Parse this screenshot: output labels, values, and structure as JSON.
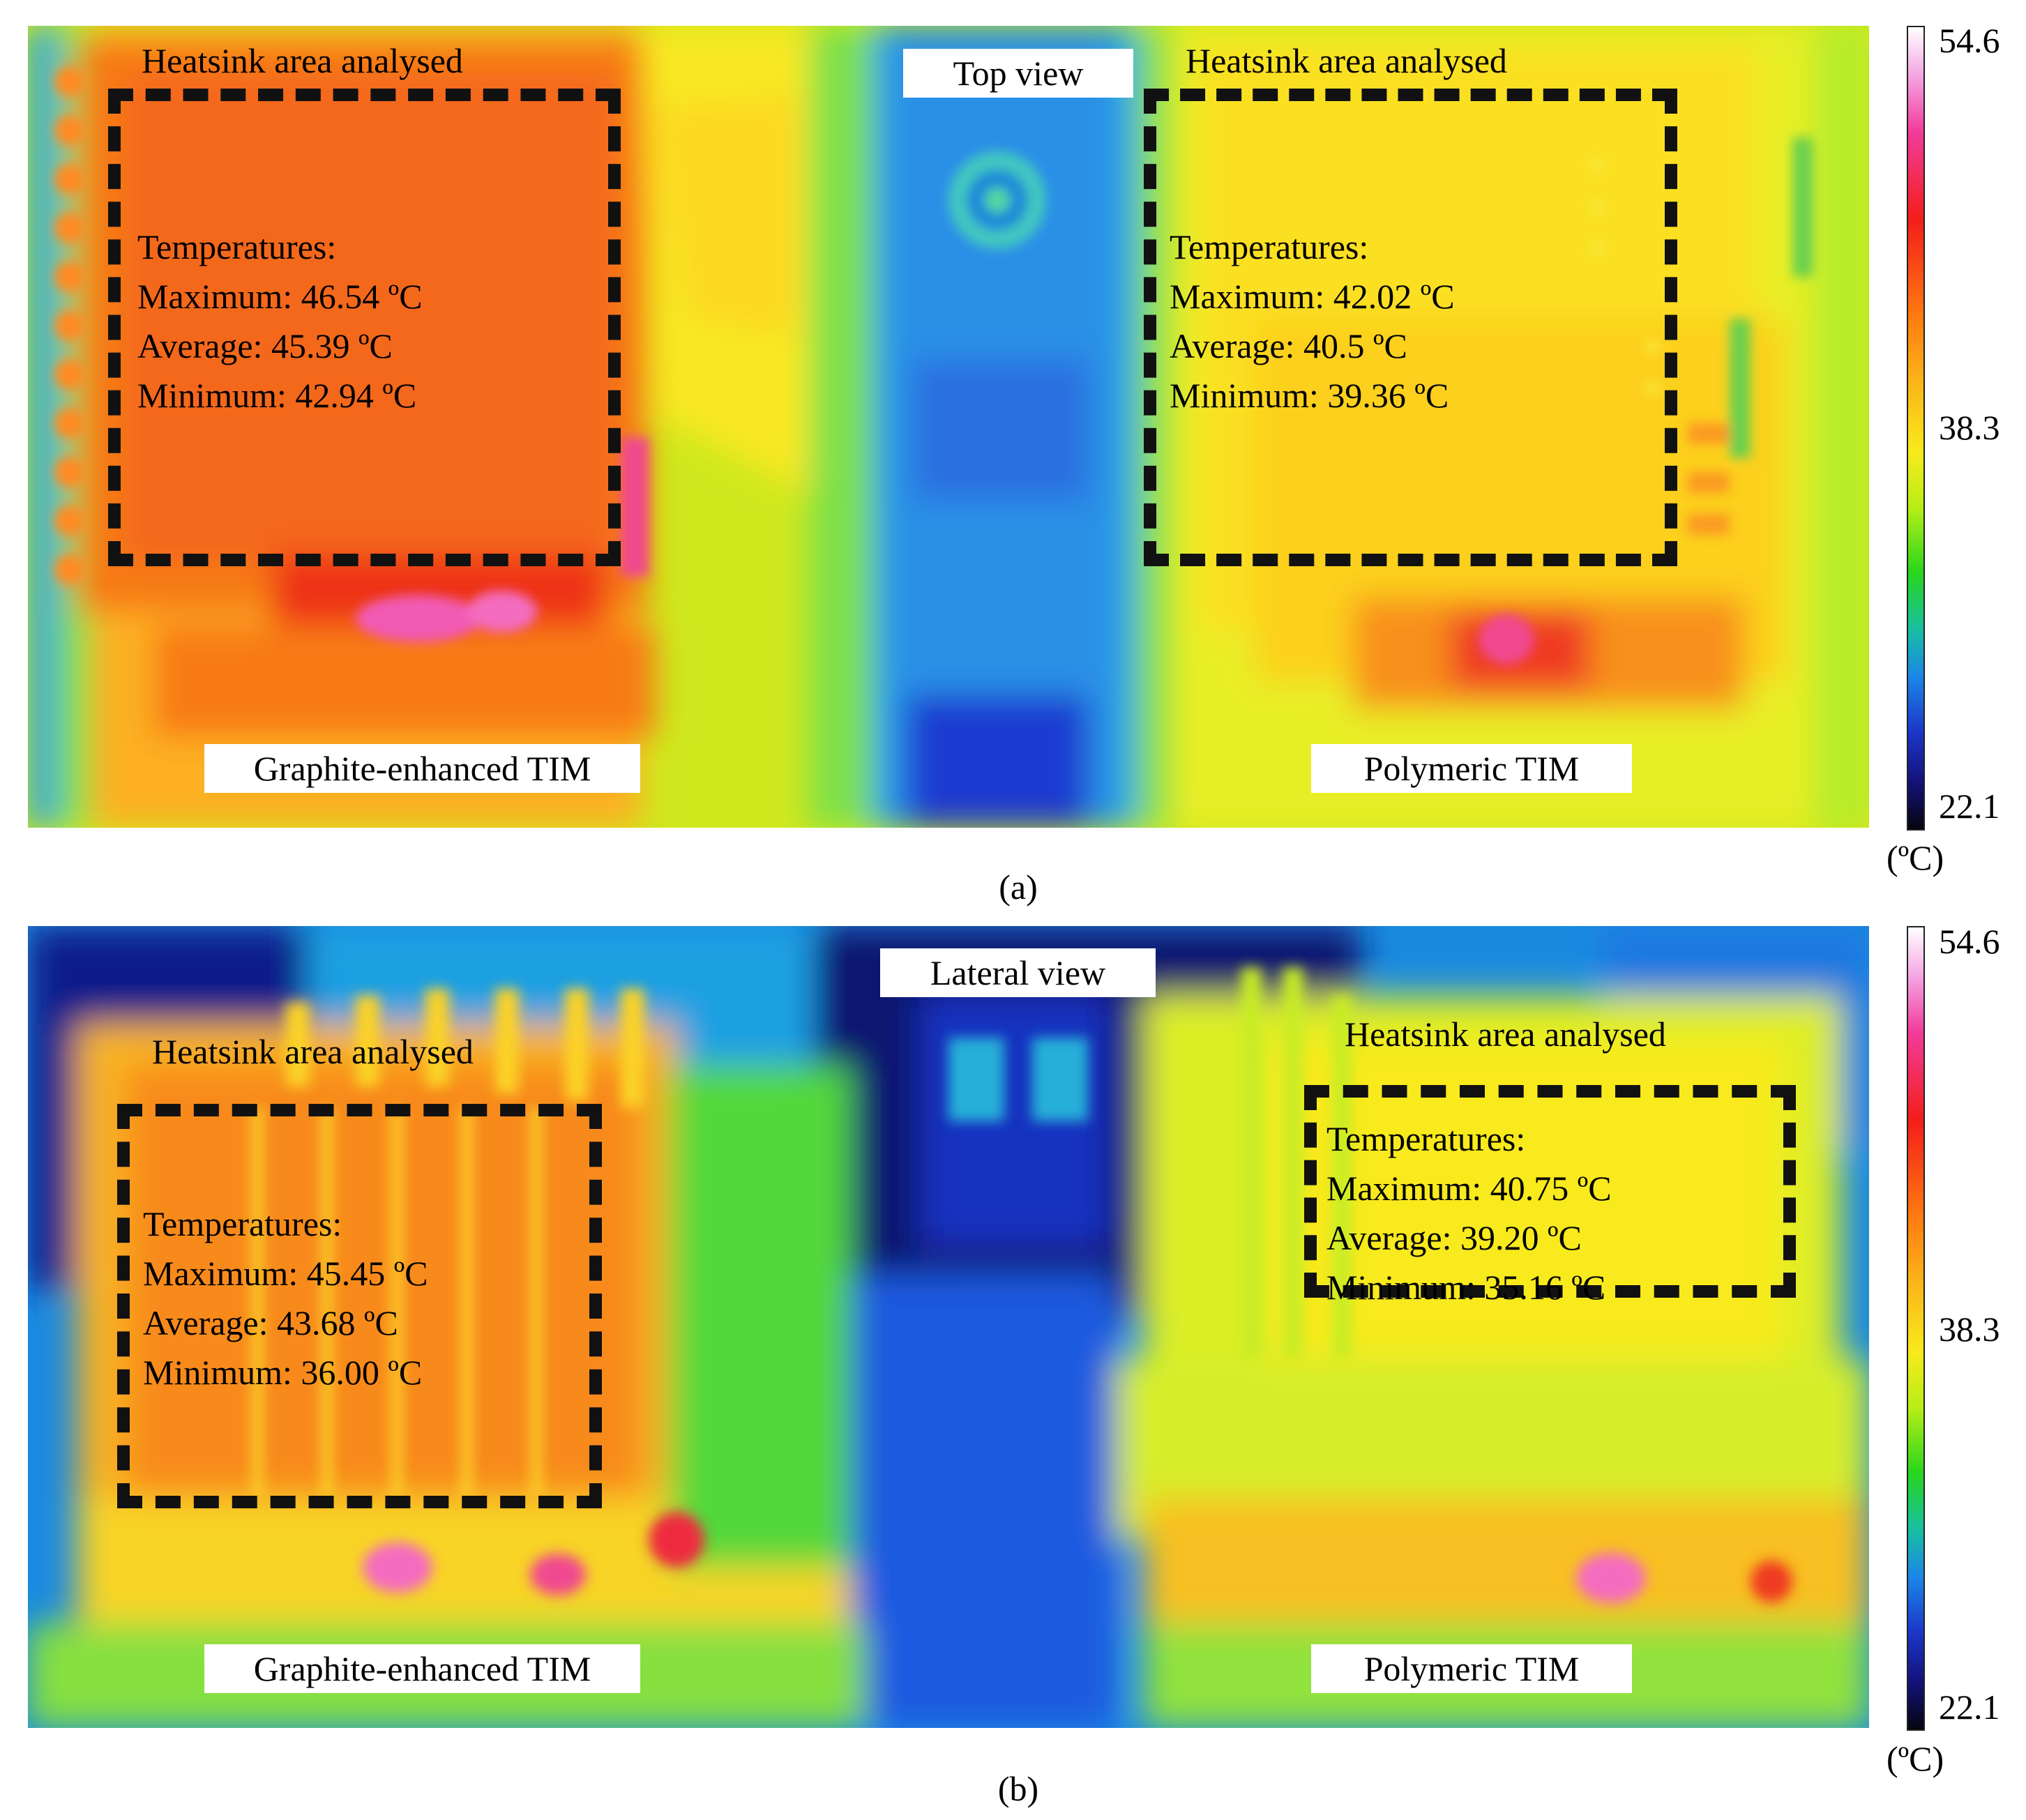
{
  "panel_a": {
    "caption": "(a)",
    "view_label": "Top view",
    "left": {
      "area_title": "Heatsink area analysed",
      "temps_heading": "Temperatures:",
      "max": "Maximum: 46.54 ºC",
      "avg": "Average: 45.39 ºC",
      "min": "Minimum: 42.94 ºC",
      "tim_label": "Graphite-enhanced TIM"
    },
    "right": {
      "area_title": "Heatsink area analysed",
      "temps_heading": "Temperatures:",
      "max": "Maximum: 42.02 ºC",
      "avg": "Average: 40.5 ºC",
      "min": "Minimum: 39.36 ºC",
      "tim_label": "Polymeric TIM"
    }
  },
  "panel_b": {
    "caption": "(b)",
    "view_label": "Lateral view",
    "left": {
      "area_title": "Heatsink area analysed",
      "temps_heading": "Temperatures:",
      "max": "Maximum: 45.45 ºC",
      "avg": "Average: 43.68 ºC",
      "min": "Minimum: 36.00 ºC",
      "tim_label": "Graphite-enhanced TIM"
    },
    "right": {
      "area_title": "Heatsink area analysed",
      "temps_heading": "Temperatures:",
      "max": "Maximum: 40.75 ºC",
      "avg": "Average: 39.20 ºC",
      "min": "Minimum: 35.16 ºC",
      "tim_label": "Polymeric TIM"
    }
  },
  "color_scale": {
    "max": "54.6",
    "mid": "38.3",
    "min": "22.1",
    "unit": "(ºC)"
  }
}
